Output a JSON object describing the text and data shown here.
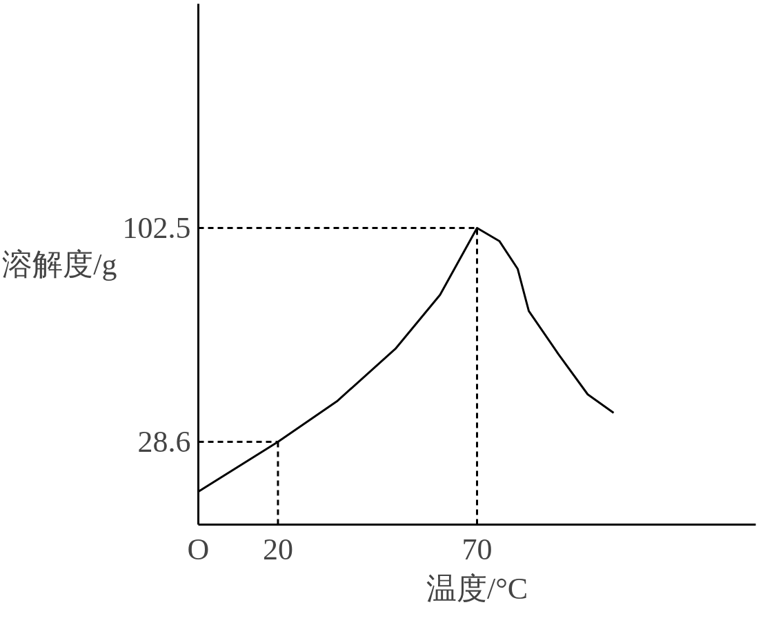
{
  "chart_data": {
    "type": "line",
    "xlabel": "温度/°C",
    "ylabel": "溶解度/g",
    "x": [
      0,
      20,
      34.8,
      49.6,
      60.7,
      70,
      75.6,
      80.2,
      83,
      90.4,
      97.8,
      104.3
    ],
    "series": [
      {
        "color": "#000000",
        "values": [
          11.4,
          28.6,
          42.6,
          60.9,
          79.4,
          102.5,
          98,
          88.4,
          73.8,
          59,
          45,
          38.6
        ]
      }
    ],
    "xlim": [
      0,
      140
    ],
    "ylim": [
      0,
      180
    ],
    "xticks": [
      {
        "value": 0,
        "label": "O"
      },
      20,
      70
    ],
    "yticks": [
      28.6,
      102.5
    ],
    "ref_lines": [
      {
        "axis": "y",
        "value": 28.6,
        "line_style": "dashed",
        "color": "#000000"
      },
      {
        "axis": "x",
        "value": 20,
        "line_style": "dashed",
        "color": "#000000"
      },
      {
        "axis": "y",
        "value": 102.5,
        "line_style": "dashed",
        "color": "#000000"
      },
      {
        "axis": "x",
        "value": 70,
        "line_style": "dashed",
        "color": "#000000"
      }
    ],
    "grid": false,
    "marker": "none",
    "line_style": "solid"
  }
}
